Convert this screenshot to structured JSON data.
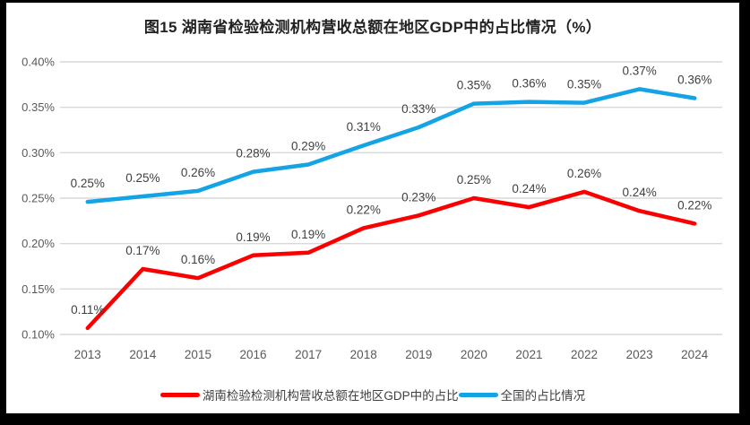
{
  "title": "图15 湖南省检验检测机构营收总额在地区GDP中的占比情况（%）",
  "colors": {
    "background": "#000000",
    "panel": "#ffffff",
    "gridline": "#D9D9D9",
    "axis_text": "#595959",
    "data_label_text": "#404040",
    "title_text": "#222222"
  },
  "chart_data": {
    "type": "line",
    "title": "图15 湖南省检验检测机构营收总额在地区GDP中的占比情况（%）",
    "categories": [
      "2013",
      "2014",
      "2015",
      "2016",
      "2017",
      "2018",
      "2019",
      "2020",
      "2021",
      "2022",
      "2023",
      "2024"
    ],
    "series": [
      {
        "name": "湖南检验检测机构营收总额在地区GDP中的占比",
        "color": "#FB0000",
        "values": [
          0.107,
          0.172,
          0.162,
          0.187,
          0.19,
          0.217,
          0.231,
          0.25,
          0.24,
          0.257,
          0.236,
          0.222
        ],
        "labels": [
          "0.11%",
          "0.17%",
          "0.16%",
          "0.19%",
          "0.19%",
          "0.22%",
          "0.23%",
          "0.25%",
          "0.24%",
          "0.26%",
          "0.24%",
          "0.22%"
        ]
      },
      {
        "name": "全国的占比情况",
        "color": "#14A3E4",
        "values": [
          0.246,
          0.252,
          0.258,
          0.279,
          0.287,
          0.308,
          0.328,
          0.354,
          0.356,
          0.355,
          0.37,
          0.36
        ],
        "labels": [
          "0.25%",
          "0.25%",
          "0.26%",
          "0.28%",
          "0.29%",
          "0.31%",
          "0.33%",
          "0.35%",
          "0.36%",
          "0.35%",
          "0.37%",
          "0.36%"
        ]
      }
    ],
    "xlabel": "",
    "ylabel": "",
    "ylim": [
      0.1,
      0.4
    ],
    "y_tick_values": [
      0.4,
      0.35,
      0.3,
      0.25,
      0.2,
      0.15,
      0.1
    ],
    "y_tick_labels": [
      "0.40%",
      "0.35%",
      "0.30%",
      "0.25%",
      "0.20%",
      "0.15%",
      "0.10%"
    ],
    "grid": true,
    "legend_position": "bottom"
  }
}
